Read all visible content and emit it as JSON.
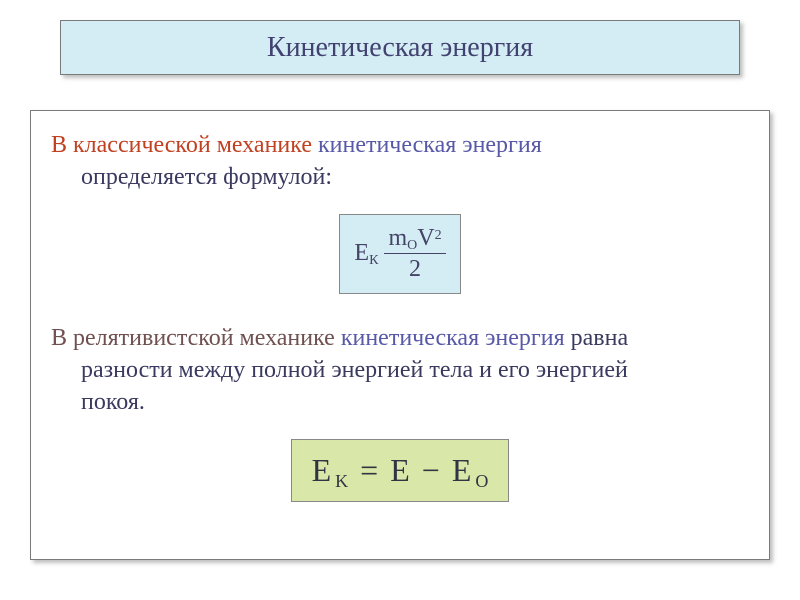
{
  "title": "Кинетическая энергия",
  "para1": {
    "intro": "В классической механике ",
    "kin": "кинетическая энергия",
    "rest": "определяется формулой:"
  },
  "formula1": {
    "E": "E",
    "Ksub": "К",
    "m": "m",
    "Osub": "O",
    "V": "V",
    "sq": "2",
    "den": "2"
  },
  "para2": {
    "intro": "В релятивистской механике ",
    "kin": "кинетическая энергия",
    "rest1": " равна",
    "rest2": "разности между полной энергией тела и его энергией",
    "rest3": "покоя."
  },
  "formula2": {
    "E": "E",
    "Ksub": "K",
    "eq": "=",
    "E2": "E",
    "minus": "−",
    "E3": "E",
    "Osub": "O"
  },
  "colors": {
    "title_bg": "#d4edf4",
    "formula1_bg": "#d4edf4",
    "formula2_bg": "#d9e8a8",
    "intro_color": "#c04020",
    "kin_color": "#5858a8",
    "plain_color": "#3a3a60",
    "rel_color": "#705050",
    "border": "#7a7a7a"
  }
}
